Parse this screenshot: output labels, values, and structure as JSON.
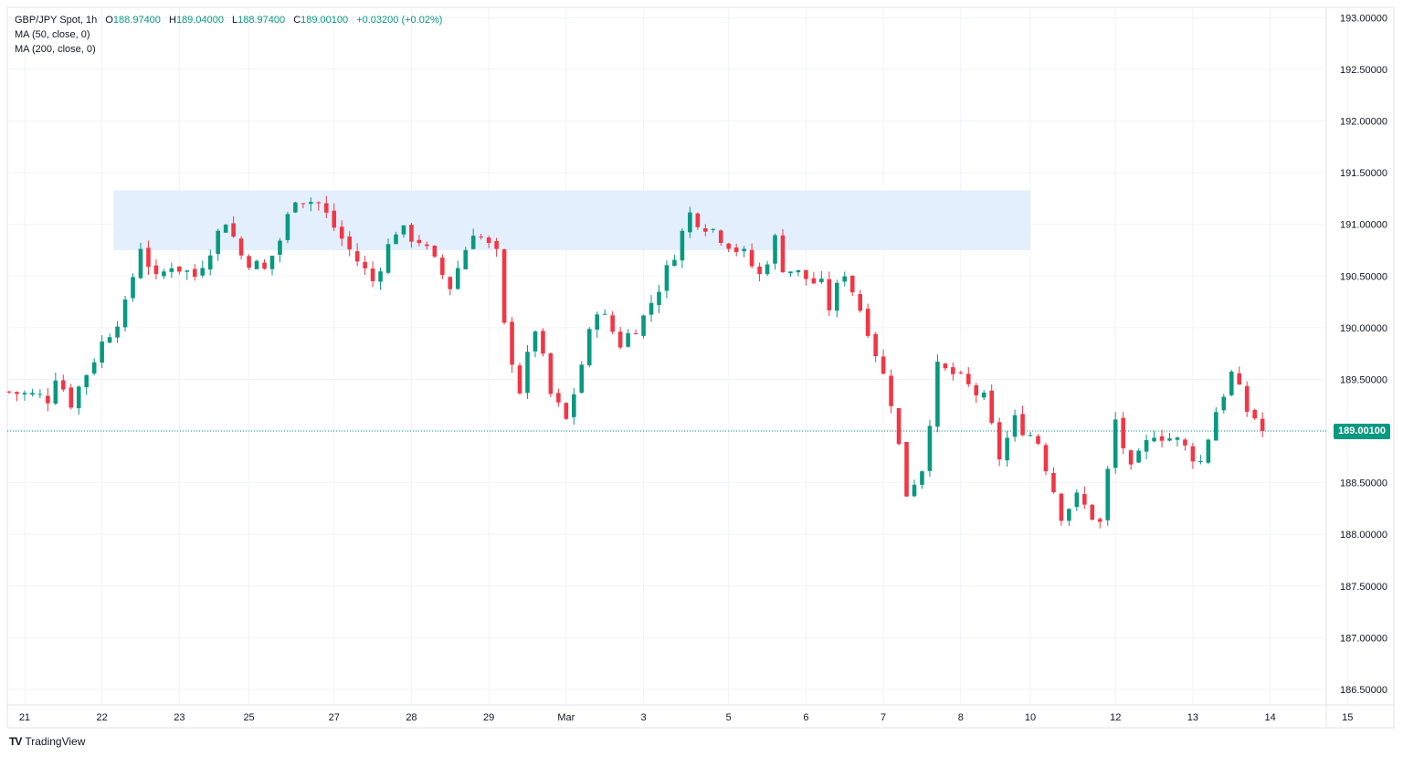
{
  "legend": {
    "symbol": "GBP/JPY Spot, 1h",
    "open_label": "O",
    "open": "188.97400",
    "high_label": "H",
    "high": "189.04000",
    "low_label": "L",
    "low": "188.97400",
    "close_label": "C",
    "close": "189.00100",
    "change": "+0.03200 (+0.02%)",
    "ma50": "MA (50, close, 0)",
    "ma200": "MA (200, close, 0)"
  },
  "last_price": "189.00100",
  "brand": {
    "name": "TradingView",
    "logo_text": "TV"
  },
  "colors": {
    "up": "#089981",
    "down": "#f23645",
    "zone": "#e3effd",
    "grid": "#f0f3fa",
    "last_line": "#089981"
  },
  "chart_data": {
    "type": "candlestick",
    "ylim": [
      186.35,
      193.1
    ],
    "y_ticks": [
      "193.00000",
      "192.50000",
      "192.00000",
      "191.50000",
      "191.00000",
      "190.50000",
      "190.00000",
      "189.50000",
      "189.00000",
      "188.50000",
      "188.00000",
      "187.50000",
      "187.00000",
      "186.50000"
    ],
    "y_tick_values": [
      193.0,
      192.5,
      192.0,
      191.5,
      191.0,
      190.5,
      190.0,
      189.5,
      189.0,
      188.5,
      188.0,
      187.5,
      187.0,
      186.5
    ],
    "x_ticks": [
      "21",
      "22",
      "23",
      "25",
      "27",
      "28",
      "29",
      "Mar",
      "3",
      "5",
      "6",
      "7",
      "8",
      "10",
      "12",
      "13",
      "14",
      "15"
    ],
    "x_tick_bars": [
      2,
      12,
      22,
      31,
      42,
      52,
      62,
      72,
      82,
      93,
      103,
      113,
      123,
      132,
      143,
      153,
      163,
      173
    ],
    "bar_count": 163,
    "resistance_zone": {
      "price_low": 190.75,
      "price_high": 191.33,
      "bar_start": 13.5,
      "bar_end": 132
    },
    "last_price": 189.001,
    "keypoints": [
      [
        0,
        189.38
      ],
      [
        5,
        189.32
      ],
      [
        6,
        189.55
      ],
      [
        8,
        189.28
      ],
      [
        12,
        189.85
      ],
      [
        15,
        190.2
      ],
      [
        17,
        190.8
      ],
      [
        19,
        190.45
      ],
      [
        21,
        190.62
      ],
      [
        24,
        190.5
      ],
      [
        28,
        191.05
      ],
      [
        30,
        190.7
      ],
      [
        33,
        190.55
      ],
      [
        35,
        190.85
      ],
      [
        37,
        191.28
      ],
      [
        40,
        191.2
      ],
      [
        44,
        190.75
      ],
      [
        47,
        190.45
      ],
      [
        50,
        190.95
      ],
      [
        53,
        190.85
      ],
      [
        57,
        190.4
      ],
      [
        60,
        190.95
      ],
      [
        63,
        190.7
      ],
      [
        64,
        190.0
      ],
      [
        66,
        189.4
      ],
      [
        68,
        190.0
      ],
      [
        70,
        189.35
      ],
      [
        72,
        189.1
      ],
      [
        74,
        189.65
      ],
      [
        76,
        190.2
      ],
      [
        79,
        189.85
      ],
      [
        82,
        190.1
      ],
      [
        85,
        190.55
      ],
      [
        88,
        191.1
      ],
      [
        91,
        190.95
      ],
      [
        95,
        190.7
      ],
      [
        97,
        190.5
      ],
      [
        99,
        190.85
      ],
      [
        100,
        190.6
      ],
      [
        105,
        190.4
      ],
      [
        106,
        190.2
      ],
      [
        108,
        190.55
      ],
      [
        111,
        190.0
      ],
      [
        114,
        189.3
      ],
      [
        116,
        188.4
      ],
      [
        118,
        188.65
      ],
      [
        120,
        189.6
      ],
      [
        122,
        189.55
      ],
      [
        126,
        189.3
      ],
      [
        128,
        188.75
      ],
      [
        130,
        189.1
      ],
      [
        133,
        188.9
      ],
      [
        136,
        188.2
      ],
      [
        138,
        188.35
      ],
      [
        141,
        188.1
      ],
      [
        143,
        189.1
      ],
      [
        145,
        188.6
      ],
      [
        148,
        189.0
      ],
      [
        151,
        188.9
      ],
      [
        154,
        188.7
      ],
      [
        156,
        189.2
      ],
      [
        158,
        189.55
      ],
      [
        160,
        189.2
      ],
      [
        163,
        189.0
      ]
    ]
  }
}
